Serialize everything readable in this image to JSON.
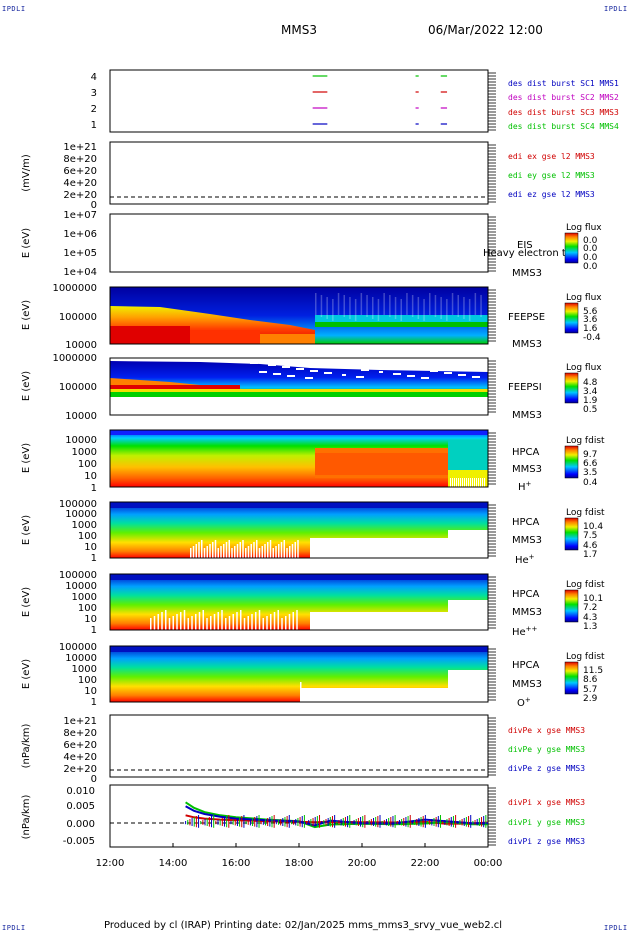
{
  "corners": {
    "tl": "IPDLI",
    "tr": "IPDLI",
    "bl": "IPDLI",
    "br": "IPDLI"
  },
  "header": {
    "mission": "MMS3",
    "date": "06/Mar/2022 12:00"
  },
  "footer": {
    "text": "Produced by cl (IRAP)   Printing date: 02/Jan/2025   mms_mms3_srvy_vue_web2.cl"
  },
  "colors": {
    "blue": "#0000c0",
    "red": "#d00000",
    "green": "#00c000",
    "magenta": "#c000c0"
  },
  "x_axis": {
    "ticks": [
      "12:00",
      "14:00",
      "16:00",
      "18:00",
      "20:00",
      "22:00",
      "00:00"
    ]
  },
  "panels": {
    "p1": {
      "ticks": [
        "4",
        "3",
        "2",
        "1"
      ],
      "labels": [
        "des dist burst SC1 MMS1",
        "des dist burst SC2 MMS2",
        "des dist burst SC3 MMS3",
        "des dist burst SC4 MMS4"
      ]
    },
    "p2": {
      "ylabel": "(mV/m)",
      "ticks": [
        "1e+21",
        "8e+20",
        "6e+20",
        "4e+20",
        "2e+20",
        "0"
      ],
      "labels": [
        "edi ex gse l2 MMS3",
        "edi ey gse l2 MMS3",
        "edi ez gse l2 MMS3"
      ]
    },
    "p3": {
      "ylabel": "E (eV)",
      "ticks": [
        "1e+07",
        "1e+06",
        "1e+05",
        "1e+04"
      ],
      "inst": "EIS",
      "sub": "MMS3",
      "overlay": "Heavy electron to",
      "cb_title": "Log flux",
      "cb_ticks": [
        "0.0",
        "0.0",
        "0.0",
        "0.0"
      ]
    },
    "p4": {
      "ylabel": "E (eV)",
      "ticks": [
        "1000000",
        "100000",
        "10000"
      ],
      "inst": "FEEPSE",
      "sub": "MMS3",
      "cb_title": "Log flux",
      "cb_ticks": [
        "5.6",
        "3.6",
        "1.6",
        "-0.4"
      ]
    },
    "p5": {
      "ylabel": "E (eV)",
      "ticks": [
        "1000000",
        "100000",
        "10000"
      ],
      "inst": "FEEPSI",
      "sub": "MMS3",
      "cb_title": "Log flux",
      "cb_ticks": [
        "4.8",
        "3.4",
        "1.9",
        "0.5"
      ]
    },
    "p6": {
      "ylabel": "E (eV)",
      "ticks": [
        "10000",
        "1000",
        "100",
        "10",
        "1"
      ],
      "inst": "HPCA",
      "sub": "MMS3",
      "species": "H",
      "sup": "+",
      "cb_title": "Log fdist",
      "cb_ticks": [
        "9.7",
        "6.6",
        "3.5",
        "0.4"
      ]
    },
    "p7": {
      "ylabel": "E (eV)",
      "ticks": [
        "100000",
        "10000",
        "1000",
        "100",
        "10",
        "1"
      ],
      "inst": "HPCA",
      "sub": "MMS3",
      "species": "He",
      "sup": "+",
      "cb_title": "Log fdist",
      "cb_ticks": [
        "10.4",
        "7.5",
        "4.6",
        "1.7"
      ]
    },
    "p8": {
      "ylabel": "E (eV)",
      "ticks": [
        "100000",
        "10000",
        "1000",
        "100",
        "10",
        "1"
      ],
      "inst": "HPCA",
      "sub": "MMS3",
      "species": "He",
      "sup": "++",
      "cb_title": "Log fdist",
      "cb_ticks": [
        "10.1",
        "7.2",
        "4.3",
        "1.3"
      ]
    },
    "p9": {
      "ylabel": "E (eV)",
      "ticks": [
        "100000",
        "10000",
        "1000",
        "100",
        "10",
        "1"
      ],
      "inst": "HPCA",
      "sub": "MMS3",
      "species": "O",
      "sup": "+",
      "cb_title": "Log fdist",
      "cb_ticks": [
        "11.5",
        "8.6",
        "5.7",
        "2.9"
      ]
    },
    "p10": {
      "ylabel": "(nPa/km)",
      "ticks": [
        "1e+21",
        "8e+20",
        "6e+20",
        "4e+20",
        "2e+20",
        "0"
      ],
      "labels": [
        "divPe x gse MMS3",
        "divPe y gse MMS3",
        "divPe z gse MMS3"
      ]
    },
    "p11": {
      "ylabel": "(nPa/km)",
      "ticks": [
        "0.010",
        "0.005",
        "0.000",
        "-0.005"
      ],
      "labels": [
        "divPi x gse MMS3",
        "divPi y gse MMS3",
        "divPi z gse MMS3"
      ]
    }
  },
  "chart_data": {
    "type": "heatmap",
    "x": [
      "12:00",
      "14:00",
      "16:00",
      "18:00",
      "20:00",
      "22:00",
      "00:00"
    ],
    "xlim": [
      "12:00",
      "00:00"
    ],
    "burst_intervals": [
      {
        "sc": "MMS1",
        "intervals": [
          [
            "18:26",
            "18:54"
          ],
          [
            "21:42",
            "21:48"
          ],
          [
            "22:30",
            "22:42"
          ]
        ]
      },
      {
        "sc": "MMS2",
        "intervals": [
          [
            "18:26",
            "18:54"
          ],
          [
            "21:42",
            "21:48"
          ],
          [
            "22:30",
            "22:42"
          ]
        ]
      },
      {
        "sc": "MMS3",
        "intervals": [
          [
            "18:26",
            "18:54"
          ],
          [
            "21:42",
            "21:48"
          ],
          [
            "22:30",
            "22:42"
          ]
        ]
      },
      {
        "sc": "MMS4",
        "intervals": [
          [
            "18:26",
            "18:54"
          ],
          [
            "21:42",
            "21:48"
          ],
          [
            "22:30",
            "22:42"
          ]
        ]
      }
    ],
    "divPi": {
      "x": [
        "14:24",
        "14:40",
        "15:00",
        "15:30",
        "16:00",
        "17:00",
        "18:00",
        "18:30",
        "19:00",
        "20:00",
        "21:00",
        "22:00",
        "22:40",
        "23:30",
        "00:00"
      ],
      "series": [
        {
          "name": "divPi x gse MMS3",
          "color": "#d00000",
          "values": [
            0.0022,
            0.0016,
            0.0012,
            0.0009,
            0.0007,
            0.0004,
            0.0002,
            0.0001,
            0.0002,
            0.0001,
            0.0,
            0.0002,
            -0.0004,
            -0.0003,
            0.0
          ]
        },
        {
          "name": "divPi y gse MMS3",
          "color": "#00c000",
          "values": [
            0.0062,
            0.0045,
            0.0032,
            0.0022,
            0.0016,
            0.0009,
            0.0004,
            -0.0014,
            -0.0006,
            -0.0004,
            -0.0005,
            -0.0003,
            0.0002,
            -0.0005,
            -0.0005
          ]
        },
        {
          "name": "divPi z gse MMS3",
          "color": "#0000c0",
          "values": [
            0.005,
            0.0036,
            0.0026,
            0.0018,
            0.0012,
            0.0007,
            0.0003,
            -0.0009,
            0.0006,
            -0.0002,
            -0.0003,
            0.0009,
            0.0004,
            -0.0002,
            -0.0002
          ]
        }
      ],
      "ylim": [
        -0.0075,
        0.0115
      ]
    }
  }
}
